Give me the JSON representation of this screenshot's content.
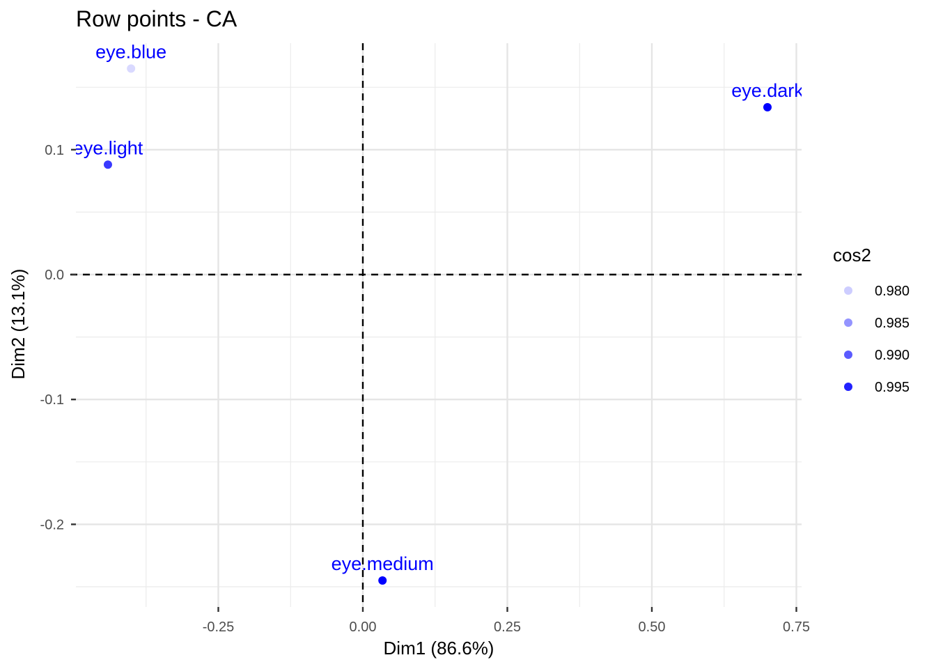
{
  "chart_data": {
    "type": "scatter",
    "title": "Row points - CA",
    "xlabel": "Dim1 (86.6%)",
    "ylabel": "Dim2 (13.1%)",
    "xlim": [
      -0.5,
      0.75
    ],
    "ylim": [
      -0.265,
      0.185
    ],
    "x_ticks": [
      -0.25,
      0.0,
      0.25,
      0.5,
      0.75
    ],
    "x_tick_labels": [
      "-0.25",
      "0.00",
      "0.25",
      "0.50",
      "0.75"
    ],
    "y_ticks": [
      -0.2,
      -0.1,
      0.0,
      0.1
    ],
    "y_tick_labels": [
      "-0.2",
      "-0.1",
      "0.0",
      "0.1"
    ],
    "grid": true,
    "reference_lines": {
      "x": 0,
      "y": 0,
      "style": "dashed"
    },
    "color": "#0000ff",
    "points": [
      {
        "label": "eye.blue",
        "x": -0.401,
        "y": 0.165,
        "cos2": 0.979
      },
      {
        "label": "eye.light",
        "x": -0.441,
        "y": 0.088,
        "cos2": 0.993
      },
      {
        "label": "eye.dark",
        "x": 0.7,
        "y": 0.134,
        "cos2": 0.998
      },
      {
        "label": "eye.medium",
        "x": 0.034,
        "y": -0.245,
        "cos2": 0.998
      }
    ],
    "legend": {
      "title": "cos2",
      "placement": "right",
      "entries": [
        {
          "label": "0.980",
          "value": 0.98
        },
        {
          "label": "0.985",
          "value": 0.985
        },
        {
          "label": "0.990",
          "value": 0.99
        },
        {
          "label": "0.995",
          "value": 0.995
        }
      ]
    }
  }
}
